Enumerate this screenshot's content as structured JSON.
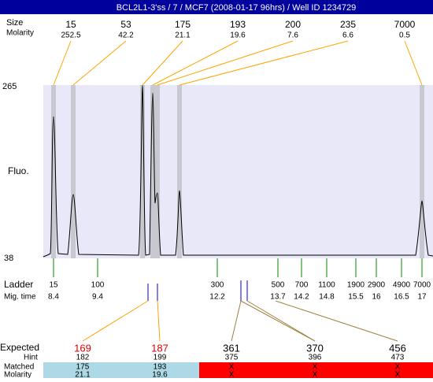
{
  "header": {
    "title": "BCL2L1-3'ss / 7 / MCF7 (2008-01-17 96hrs) / Well ID 1234729"
  },
  "peaks": {
    "size_label": "Size",
    "molarity_label": "Molarity",
    "sizes": [
      15,
      53,
      175,
      193,
      200,
      235,
      7000
    ],
    "molarities": [
      252.5,
      42.2,
      21.1,
      19.6,
      7.6,
      6.6,
      0.5
    ]
  },
  "fluo": {
    "label": "Fluo.",
    "max": 265,
    "min": 38
  },
  "ladder": {
    "label": "Ladder",
    "mig_label": "Mig. time",
    "sizes": [
      15,
      100,
      300,
      500,
      700,
      1100,
      1900,
      2900,
      4900,
      7000
    ],
    "mig_times": [
      8.4,
      9.4,
      12.2,
      13.7,
      14.2,
      14.8,
      15.5,
      16,
      16.5,
      17
    ]
  },
  "expected": {
    "label": "Expected",
    "hint_label": "Hint",
    "matched_label": "Matched",
    "molarity_label": "Molarity",
    "expected": [
      169,
      187,
      361,
      370,
      456
    ],
    "hint": [
      182,
      199,
      375,
      396,
      473
    ],
    "matched": [
      "175",
      "193",
      "X",
      "X",
      "X"
    ],
    "molarity": [
      "21.1",
      "19.6",
      "X",
      "X",
      "X"
    ]
  }
}
